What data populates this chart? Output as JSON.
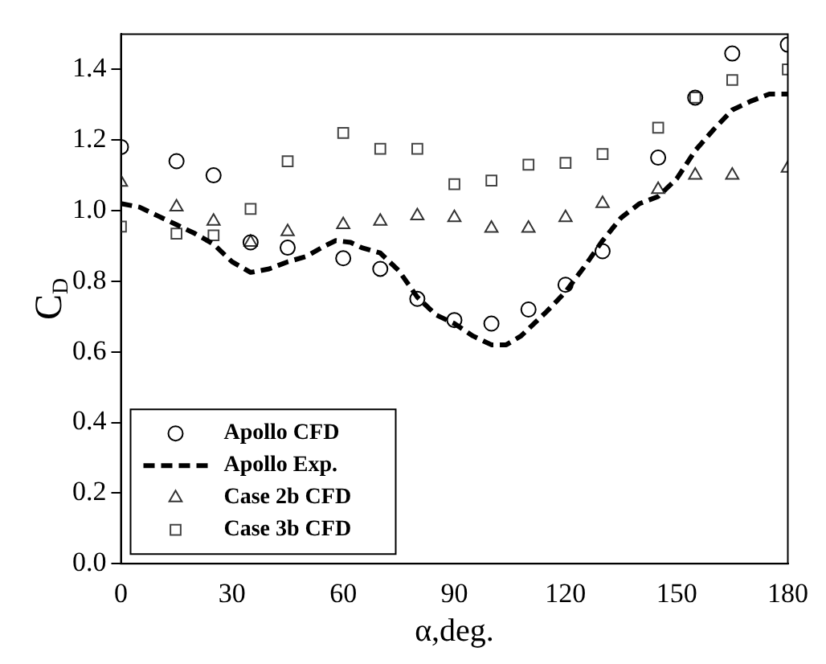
{
  "chart_data": {
    "type": "scatter",
    "xlabel": "α,deg.",
    "ylabel": "C$_{D}$",
    "xlim": [
      0,
      180
    ],
    "xticks": [
      0,
      30,
      60,
      90,
      120,
      150,
      180
    ],
    "ylim": [
      0,
      1.5
    ],
    "yticks": [
      {
        "value": 0,
        "label": "0.0"
      },
      {
        "value": 0.2,
        "label": "0.2"
      },
      {
        "value": 0.4,
        "label": "0.4"
      },
      {
        "value": 0.6,
        "label": "0.6"
      },
      {
        "value": 0.8,
        "label": "0.8"
      },
      {
        "value": 1,
        "label": "1.0"
      },
      {
        "value": 1.2,
        "label": "1.2"
      },
      {
        "value": 1.4,
        "label": "1.4"
      }
    ],
    "grid": false,
    "legend": "bottom left",
    "series": [
      {
        "name": "Apollo CFD",
        "type": "scatter",
        "marker": "circle",
        "color": "#000000",
        "x": [
          0,
          15,
          25,
          35,
          45,
          60,
          70,
          80,
          90,
          100,
          110,
          120,
          130,
          145,
          155,
          165,
          180
        ],
        "values": [
          1.18,
          1.14,
          1.1,
          0.91,
          0.895,
          0.865,
          0.835,
          0.75,
          0.69,
          0.68,
          0.72,
          0.79,
          0.885,
          1.15,
          1.32,
          1.445,
          1.47
        ]
      },
      {
        "name": "Apollo Exp.",
        "type": "line",
        "marker": "none",
        "line_style": "dashed",
        "color": "#000000",
        "x": [
          0,
          5,
          10,
          15,
          20,
          25,
          30,
          35,
          40,
          45,
          50,
          55,
          58,
          62,
          65,
          70,
          75,
          80,
          85,
          90,
          95,
          100,
          104,
          108,
          115,
          120,
          125,
          130,
          135,
          140,
          145,
          150,
          155,
          160,
          165,
          170,
          175,
          180
        ],
        "values": [
          1.02,
          1.01,
          0.985,
          0.96,
          0.935,
          0.905,
          0.855,
          0.825,
          0.835,
          0.855,
          0.87,
          0.9,
          0.915,
          0.91,
          0.895,
          0.88,
          0.83,
          0.755,
          0.705,
          0.68,
          0.645,
          0.62,
          0.62,
          0.645,
          0.715,
          0.77,
          0.84,
          0.915,
          0.98,
          1.02,
          1.04,
          1.09,
          1.17,
          1.23,
          1.285,
          1.31,
          1.33,
          1.33
        ]
      },
      {
        "name": "Case 2b CFD",
        "type": "scatter",
        "marker": "triangle",
        "color": "#333333",
        "x": [
          0,
          15,
          25,
          35,
          45,
          60,
          70,
          80,
          90,
          100,
          110,
          120,
          130,
          145,
          155,
          165,
          180
        ],
        "values": [
          1.08,
          1.01,
          0.97,
          0.91,
          0.94,
          0.96,
          0.97,
          0.985,
          0.98,
          0.95,
          0.95,
          0.98,
          1.02,
          1.06,
          1.1,
          1.1,
          1.12
        ]
      },
      {
        "name": "Case 3b CFD",
        "type": "scatter",
        "marker": "square",
        "color": "#444444",
        "x": [
          0,
          15,
          25,
          35,
          45,
          60,
          70,
          80,
          90,
          100,
          110,
          120,
          130,
          145,
          155,
          165,
          180
        ],
        "values": [
          0.955,
          0.935,
          0.93,
          1.005,
          1.14,
          1.22,
          1.175,
          1.175,
          1.075,
          1.085,
          1.13,
          1.135,
          1.16,
          1.235,
          1.32,
          1.37,
          1.4
        ]
      }
    ]
  }
}
